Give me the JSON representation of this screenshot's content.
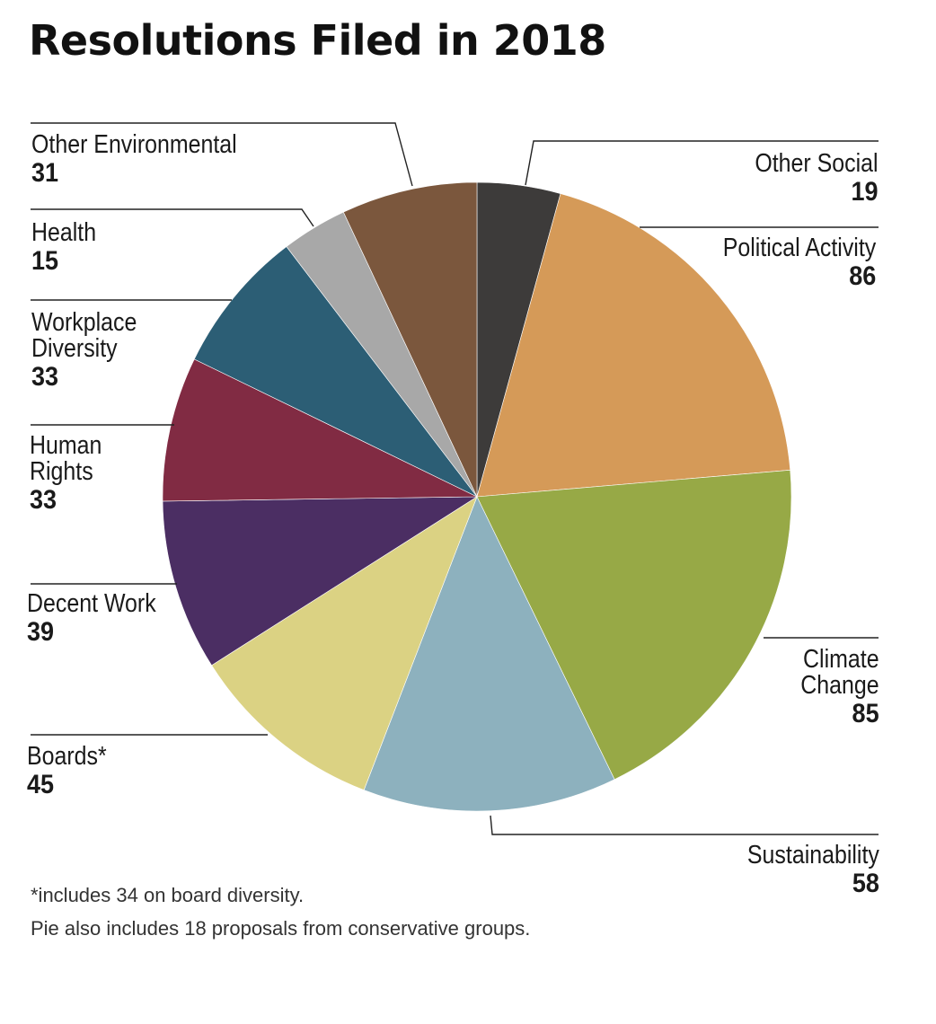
{
  "title": "Resolutions Filed in 2018",
  "chart_data": {
    "type": "pie",
    "title": "Resolutions Filed in 2018",
    "slices": [
      {
        "label": "Other Social",
        "value": 19,
        "color": "#3d3b3a"
      },
      {
        "label": "Political Activity",
        "value": 86,
        "color": "#d59a58"
      },
      {
        "label": "Climate Change",
        "value": 85,
        "color": "#97a946"
      },
      {
        "label": "Sustainability",
        "value": 58,
        "color": "#8db1be"
      },
      {
        "label": "Boards*",
        "value": 45,
        "color": "#dbd283"
      },
      {
        "label": "Decent Work",
        "value": 39,
        "color": "#4b2e63"
      },
      {
        "label": "Human Rights",
        "value": 33,
        "color": "#812b43"
      },
      {
        "label": "Workplace Diversity",
        "value": 33,
        "color": "#2c5e75"
      },
      {
        "label": "Health",
        "value": 15,
        "color": "#a8a8a8"
      },
      {
        "label": "Other Environmental",
        "value": 31,
        "color": "#7b573d"
      }
    ],
    "display_labels": [
      {
        "name": "Other Social",
        "value": "19"
      },
      {
        "name": "Political Activity",
        "value": "86"
      },
      {
        "name": "Climate\nChange",
        "value": "85"
      },
      {
        "name": "Sustainability",
        "value": "58"
      },
      {
        "name": "Boards*",
        "value": "45"
      },
      {
        "name": "Decent Work",
        "value": "39"
      },
      {
        "name": "Human\nRights",
        "value": "33"
      },
      {
        "name": "Workplace\nDiversity",
        "value": "33"
      },
      {
        "name": "Health",
        "value": "15"
      },
      {
        "name": "Other Environmental",
        "value": "31"
      }
    ]
  },
  "notes": [
    "*includes 34 on board diversity.",
    "Pie also includes 18 proposals from conservative groups."
  ]
}
